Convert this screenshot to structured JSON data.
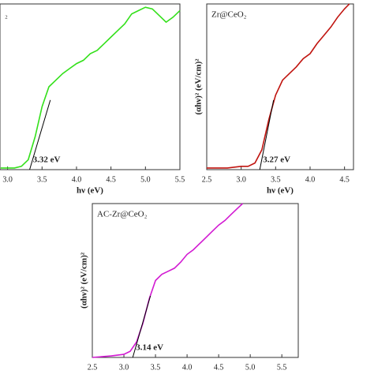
{
  "chart_data": [
    {
      "type": "line",
      "title": "₂",
      "x_label": "hν (eV)",
      "annotation": "3.32 eV",
      "xlim": [
        2.89,
        5.5
      ],
      "ylim": [
        0,
        100
      ],
      "xticks": [
        {
          "value": 3,
          "label": "3.0"
        },
        3.5,
        {
          "value": 4,
          "label": "4.0"
        },
        4.5,
        {
          "value": 5,
          "label": "5.0"
        },
        5.5
      ],
      "tangent_x": [
        3.32,
        3.62
      ],
      "tangent_y": [
        0,
        42
      ],
      "series": [
        {
          "color": "#33e01a",
          "x": [
            2.9,
            3.1,
            3.2,
            3.3,
            3.4,
            3.5,
            3.6,
            3.7,
            3.8,
            3.9,
            4.0,
            4.1,
            4.2,
            4.3,
            4.4,
            4.5,
            4.6,
            4.7,
            4.8,
            4.9,
            5.0,
            5.1,
            5.2,
            5.3,
            5.4,
            5.5
          ],
          "values": [
            1,
            1,
            2,
            6,
            20,
            38,
            50,
            54,
            58,
            61,
            64,
            66,
            70,
            72,
            76,
            80,
            84,
            88,
            94,
            96,
            98,
            97,
            93,
            89,
            92,
            96
          ]
        }
      ]
    },
    {
      "type": "line",
      "title": "Zr@CeO₂",
      "x_label": "hν (eV)",
      "y_label": "(αhν)² (eV/cm)²",
      "annotation": "3.27 eV",
      "xlim": [
        2.5,
        4.63
      ],
      "ylim": [
        0,
        100
      ],
      "xticks": [
        2.5,
        {
          "value": 3,
          "label": "3.0"
        },
        3.5,
        {
          "value": 4,
          "label": "4.0"
        },
        4.5
      ],
      "tangent_x": [
        3.27,
        3.47
      ],
      "tangent_y": [
        0,
        42
      ],
      "series": [
        {
          "color": "#c0140f",
          "x": [
            2.5,
            2.8,
            3.0,
            3.1,
            3.2,
            3.3,
            3.4,
            3.5,
            3.6,
            3.7,
            3.8,
            3.9,
            4.0,
            4.1,
            4.2,
            4.3,
            4.4,
            4.5,
            4.57
          ],
          "values": [
            1,
            1,
            2,
            2,
            4,
            12,
            30,
            45,
            54,
            58,
            62,
            67,
            70,
            76,
            81,
            86,
            92,
            97,
            100
          ]
        }
      ]
    },
    {
      "type": "line",
      "title": "AC-Zr@CeO₂",
      "x_label": "hν (eV)",
      "y_label": "(αhν)² (eV/cm)²",
      "annotation": "3.14 eV",
      "xlim": [
        2.5,
        5.76
      ],
      "ylim": [
        0,
        100
      ],
      "xticks": [
        2.5,
        {
          "value": 3,
          "label": "3.0"
        },
        3.5,
        {
          "value": 4,
          "label": "4.0"
        },
        4.5,
        {
          "value": 5,
          "label": "5.0"
        },
        5.5
      ],
      "tangent_x": [
        3.14,
        3.42
      ],
      "tangent_y": [
        0,
        40
      ],
      "series": [
        {
          "color": "#d21ad2",
          "x": [
            2.5,
            2.8,
            3.0,
            3.1,
            3.2,
            3.3,
            3.4,
            3.5,
            3.6,
            3.7,
            3.8,
            3.9,
            4.0,
            4.1,
            4.2,
            4.3,
            4.4,
            4.5,
            4.6,
            4.7,
            4.8,
            4.88
          ],
          "values": [
            0,
            1,
            2,
            4,
            10,
            22,
            38,
            50,
            54,
            56,
            58,
            62,
            67,
            70,
            74,
            78,
            82,
            86,
            89,
            93,
            97,
            100
          ]
        }
      ]
    }
  ]
}
